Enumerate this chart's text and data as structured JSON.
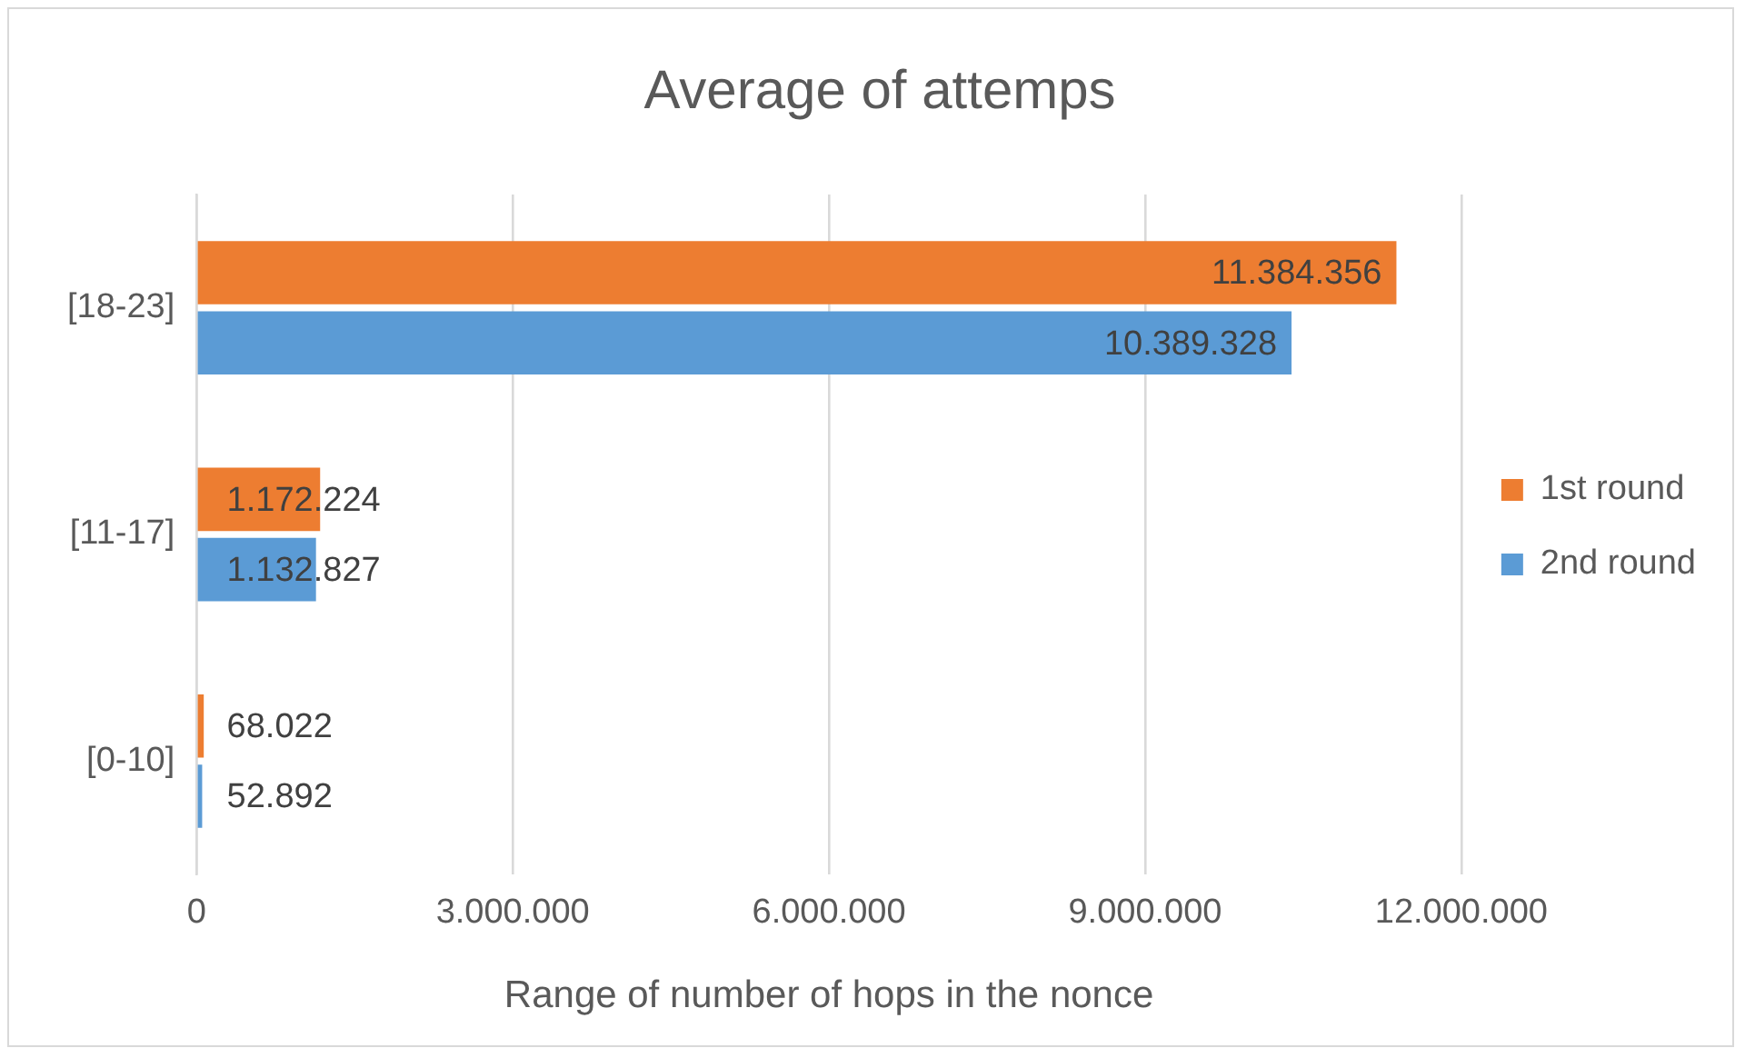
{
  "chart_data": {
    "type": "bar",
    "orientation": "horizontal",
    "title": "Average of attemps",
    "xlabel": "Range of number of hops in the nonce",
    "categories": [
      "[18-23]",
      "[11-17]",
      "[0-10]"
    ],
    "series": [
      {
        "name": "1st round",
        "color": "#ed7d31",
        "values": [
          11384356,
          1172224,
          68022
        ],
        "value_labels": [
          "11.384.356",
          "1.172.224",
          "68.022"
        ]
      },
      {
        "name": "2nd round",
        "color": "#5b9bd5",
        "values": [
          10389328,
          1132827,
          52892
        ],
        "value_labels": [
          "10.389.328",
          "1.132.827",
          "52.892"
        ]
      }
    ],
    "xlim": [
      0,
      12000000
    ],
    "xticks": [
      0,
      {
        "value": 3000000,
        "label": "3.000.000"
      },
      {
        "value": 6000000,
        "label": "6.000.000"
      },
      {
        "value": 9000000,
        "label": "9.000.000"
      },
      {
        "value": 12000000,
        "label": "12.000.000"
      }
    ],
    "grid": "x",
    "legend": "right"
  }
}
